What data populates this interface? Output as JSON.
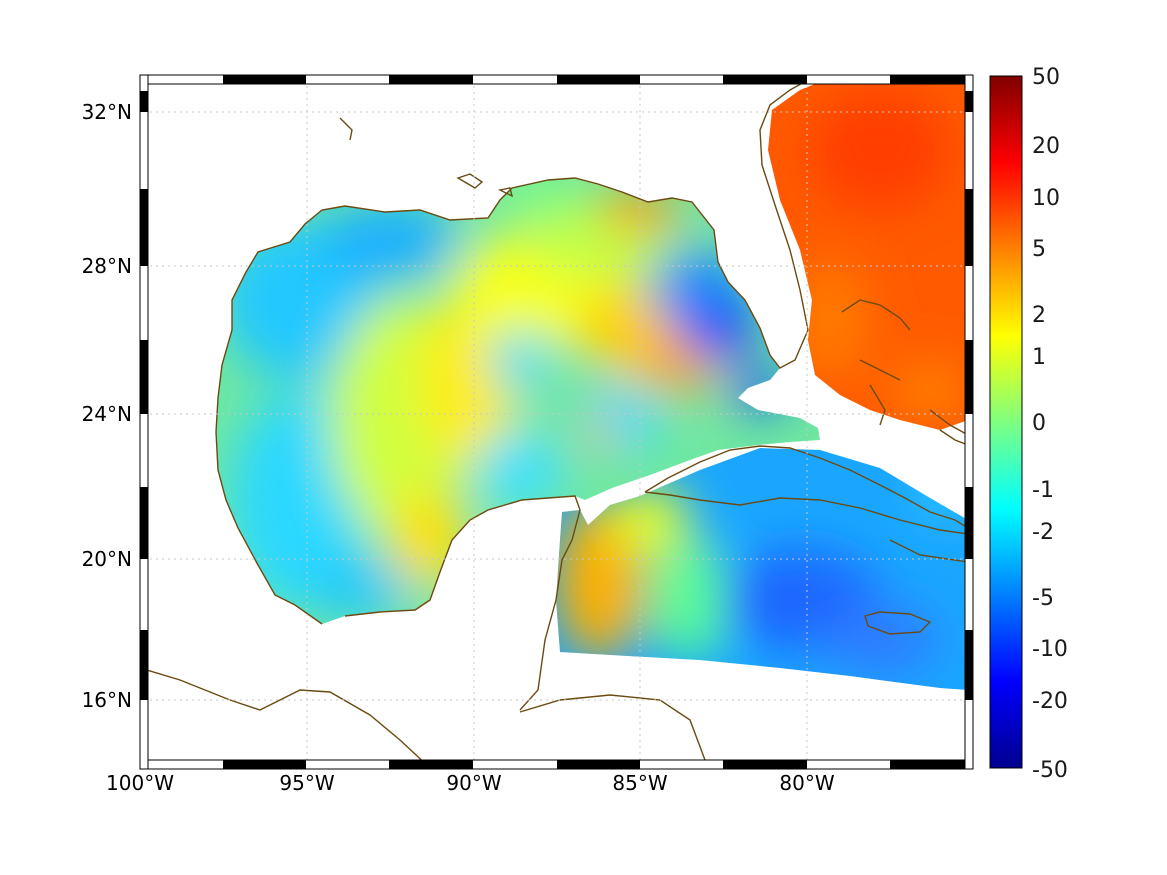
{
  "map": {
    "projection": "equirectangular",
    "lon_range": [
      -100,
      -75
    ],
    "lat_range": [
      14.2,
      33.0
    ],
    "grid": "dotted",
    "lon_ticks": [
      {
        "value": -100,
        "label": "100°W"
      },
      {
        "value": -95,
        "label": "95°W"
      },
      {
        "value": -90,
        "label": "90°W"
      },
      {
        "value": -85,
        "label": "85°W"
      },
      {
        "value": -80,
        "label": "80°W"
      }
    ],
    "lat_ticks": [
      {
        "value": 32,
        "label": "32°N"
      },
      {
        "value": 28,
        "label": "28°N"
      },
      {
        "value": 24,
        "label": "24°N"
      },
      {
        "value": 20,
        "label": "20°N"
      },
      {
        "value": 16,
        "label": "16°N"
      }
    ],
    "coastline_color": "#6b4a12",
    "land_color": "#ffffff"
  },
  "colorbar": {
    "colormap": "jet",
    "scale": "symmetric-nonlinear",
    "tick_labels": [
      "50",
      "20",
      "10",
      "5",
      "2",
      "1",
      "0",
      "-1",
      "-2",
      "-5",
      "-10",
      "-20",
      "-50"
    ]
  }
}
